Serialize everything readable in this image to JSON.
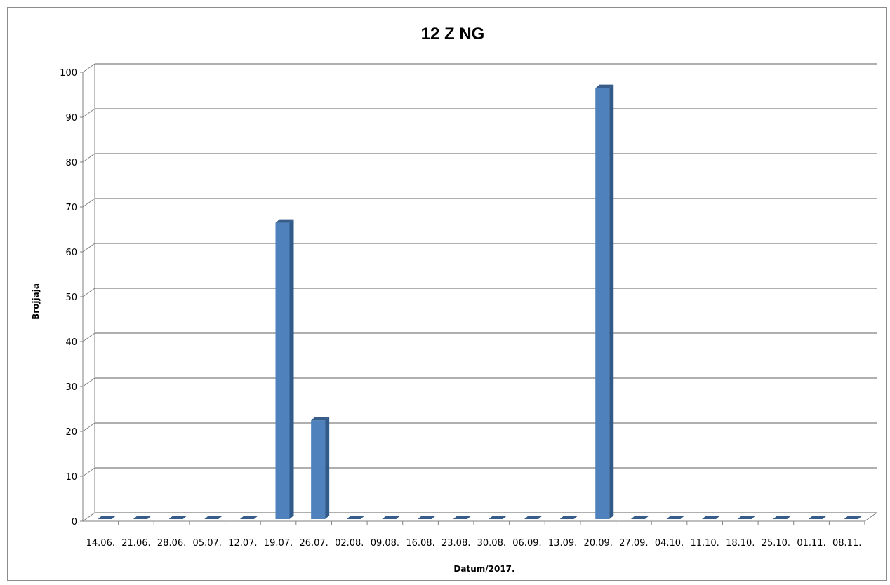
{
  "chart_data": {
    "type": "bar",
    "title": "12 Z NG",
    "xlabel": "Datum/2017.",
    "ylabel": "Brojjaja",
    "categories": [
      "14.06.",
      "21.06.",
      "28.06.",
      "05.07.",
      "12.07.",
      "19.07.",
      "26.07.",
      "02.08.",
      "09.08.",
      "16.08.",
      "23.08.",
      "30.08.",
      "06.09.",
      "13.09.",
      "20.09.",
      "27.09.",
      "04.10.",
      "11.10.",
      "18.10.",
      "25.10.",
      "01.11.",
      "08.11."
    ],
    "values": [
      0,
      0,
      0,
      0,
      0,
      66,
      22,
      0,
      0,
      0,
      0,
      0,
      0,
      0,
      96,
      0,
      0,
      0,
      0,
      0,
      0,
      0
    ],
    "ylim": [
      0,
      100
    ],
    "yticks": [
      0,
      10,
      20,
      30,
      40,
      50,
      60,
      70,
      80,
      90,
      100
    ],
    "grid": true,
    "legend": "none",
    "bar_color": "#4f81bd",
    "bar_side_color": "#2f5a8a",
    "bar_top_color": "#385d8a"
  }
}
